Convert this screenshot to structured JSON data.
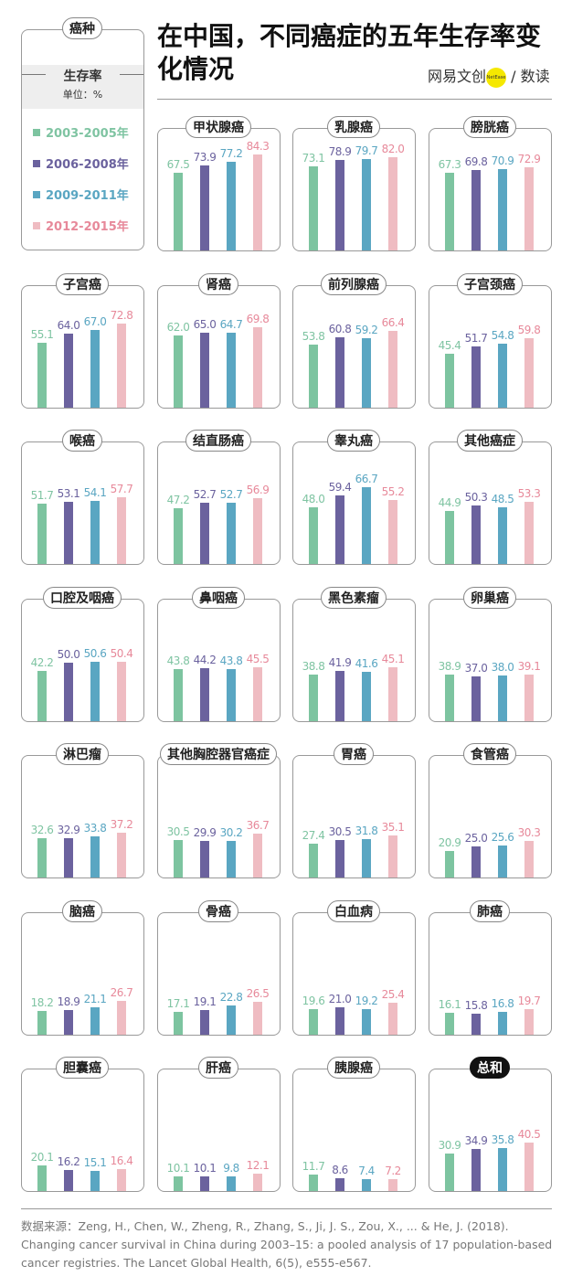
{
  "title": "在中国，不同癌症的五年生存率变化情况",
  "logo": {
    "left": "网易文创",
    "badge": "NetEase",
    "right": "数读"
  },
  "legend": {
    "header": "癌种",
    "metric": "生存率",
    "unit": "单位：%"
  },
  "source": "数据来源：Zeng, H., Chen, W., Zheng, R., Zhang, S., Ji, J. S., Zou, X., ... & He, J. (2018). Changing cancer survival in China during 2003–15: a pooled analysis of 17 population-based cancer registries. The Lancet Global Health, 6(5), e555-e567.",
  "chart_data": {
    "type": "bar",
    "unit": "%",
    "series": [
      {
        "name": "2003-2005年",
        "color": "#7dc4a0",
        "label_color": "#7fc4a2"
      },
      {
        "name": "2006-2008年",
        "color": "#6b629e",
        "label_color": "#6b629e"
      },
      {
        "name": "2009-2011年",
        "color": "#5aa6c2",
        "label_color": "#5aa6c2"
      },
      {
        "name": "2012-2015年",
        "color": "#efbcc2",
        "label_color": "#e7899a"
      }
    ],
    "panels": [
      {
        "name": "甲状腺癌",
        "values": [
          67.5,
          73.9,
          77.2,
          84.3
        ]
      },
      {
        "name": "乳腺癌",
        "values": [
          73.1,
          78.9,
          79.7,
          82.0
        ]
      },
      {
        "name": "膀胱癌",
        "values": [
          67.3,
          69.8,
          70.9,
          72.9
        ]
      },
      {
        "name": "子宫癌",
        "values": [
          55.1,
          64.0,
          67.0,
          72.8
        ]
      },
      {
        "name": "肾癌",
        "values": [
          62.0,
          65.0,
          64.7,
          69.8
        ]
      },
      {
        "name": "前列腺癌",
        "values": [
          53.8,
          60.8,
          59.2,
          66.4
        ]
      },
      {
        "name": "子宫颈癌",
        "values": [
          45.4,
          51.7,
          54.8,
          59.8
        ]
      },
      {
        "name": "喉癌",
        "values": [
          51.7,
          53.1,
          54.1,
          57.7
        ]
      },
      {
        "name": "结直肠癌",
        "values": [
          47.2,
          52.7,
          52.7,
          56.9
        ]
      },
      {
        "name": "睾丸癌",
        "values": [
          48.0,
          59.4,
          66.7,
          55.2
        ]
      },
      {
        "name": "其他癌症",
        "values": [
          44.9,
          50.3,
          48.5,
          53.3
        ]
      },
      {
        "name": "口腔及咽癌",
        "values": [
          42.2,
          50.0,
          50.6,
          50.4
        ]
      },
      {
        "name": "鼻咽癌",
        "values": [
          43.8,
          44.2,
          43.8,
          45.5
        ]
      },
      {
        "name": "黑色素瘤",
        "values": [
          38.8,
          41.9,
          41.6,
          45.1
        ]
      },
      {
        "name": "卵巢癌",
        "values": [
          38.9,
          37.0,
          38.0,
          39.1
        ]
      },
      {
        "name": "淋巴瘤",
        "values": [
          32.6,
          32.9,
          33.8,
          37.2
        ]
      },
      {
        "name": "其他胸腔器官癌症",
        "values": [
          30.5,
          29.9,
          30.2,
          36.7
        ]
      },
      {
        "name": "胃癌",
        "values": [
          27.4,
          30.5,
          31.8,
          35.1
        ]
      },
      {
        "name": "食管癌",
        "values": [
          20.9,
          25.0,
          25.6,
          30.3
        ]
      },
      {
        "name": "脑癌",
        "values": [
          18.2,
          18.9,
          21.1,
          26.7
        ]
      },
      {
        "name": "骨癌",
        "values": [
          17.1,
          19.1,
          22.8,
          26.5
        ]
      },
      {
        "name": "白血病",
        "values": [
          19.6,
          21.0,
          19.2,
          25.4
        ]
      },
      {
        "name": "肺癌",
        "values": [
          16.1,
          15.8,
          16.8,
          19.7
        ]
      },
      {
        "name": "胆囊癌",
        "values": [
          20.1,
          16.2,
          15.1,
          16.4
        ]
      },
      {
        "name": "肝癌",
        "values": [
          10.1,
          10.1,
          9.8,
          12.1
        ]
      },
      {
        "name": "胰腺癌",
        "values": [
          11.7,
          8.6,
          7.4,
          7.2
        ]
      },
      {
        "name": "总和",
        "values": [
          30.9,
          34.9,
          35.8,
          40.5
        ],
        "highlight": true
      }
    ]
  }
}
